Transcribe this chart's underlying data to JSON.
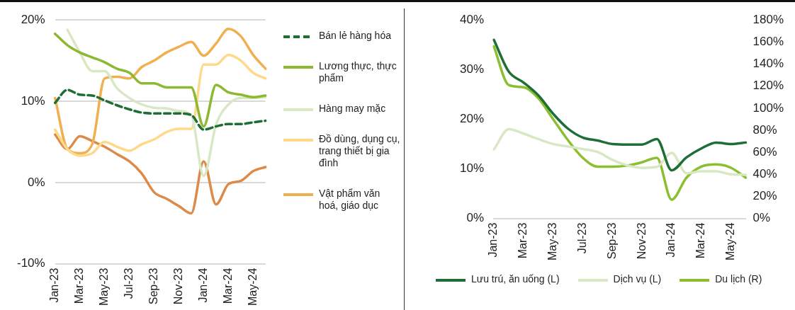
{
  "chart_data": [
    {
      "type": "line",
      "categories": [
        "Jan-23",
        null,
        "Mar-23",
        null,
        "May-23",
        null,
        "Jul-23",
        null,
        "Sep-23",
        null,
        "Nov-23",
        null,
        "Jan-24",
        null,
        "Mar-24",
        null,
        "May-24",
        null
      ],
      "series": [
        {
          "name": "Bán lẻ hàng hóa",
          "color": "#1e6e35",
          "line_style": "dashed",
          "values": [
            9.8,
            11.4,
            10.8,
            10.7,
            10.1,
            9.5,
            9.0,
            8.6,
            8.5,
            8.5,
            8.5,
            8.3,
            6.5,
            6.9,
            7.2,
            7.2,
            7.4,
            7.6
          ]
        },
        {
          "name": "Lương thực, thực phẩm",
          "color": "#8cb832",
          "values": [
            18.3,
            16.9,
            16.0,
            15.4,
            14.8,
            14.0,
            13.5,
            12.2,
            12.2,
            11.7,
            11.7,
            11.7,
            6.9,
            12.0,
            11.1,
            10.8,
            10.5,
            10.7
          ]
        },
        {
          "name": "Hàng may mặc",
          "color": "#d9e8c4",
          "values": [
            null,
            18.8,
            16.0,
            13.7,
            13.7,
            11.6,
            10.4,
            9.6,
            9.2,
            9.1,
            8.8,
            8.3,
            0.8,
            7.1,
            9.6,
            10.4,
            10.4,
            10.5
          ]
        },
        {
          "name": "Đồ dùng, dụng cụ, trang thiết bị gia đình",
          "color": "#ffd98a",
          "values": [
            6.5,
            4.1,
            3.3,
            3.6,
            5.0,
            4.4,
            3.9,
            4.7,
            5.3,
            6.2,
            6.6,
            6.6,
            14.5,
            14.5,
            15.7,
            15.0,
            13.5,
            12.8
          ]
        },
        {
          "name": "Vật phẩm văn hoá, giáo dục",
          "color": "#f0b050",
          "values": [
            10.4,
            4.1,
            3.6,
            4.7,
            12.8,
            13.0,
            12.8,
            14.2,
            15.0,
            16.0,
            16.7,
            17.3,
            15.6,
            17.1,
            18.9,
            18.0,
            15.7,
            14.0
          ]
        },
        {
          "color": "#dd8a48",
          "values": [
            5.9,
            4.1,
            5.7,
            5.1,
            4.4,
            3.5,
            2.6,
            1.1,
            -1.2,
            -2.0,
            -2.9,
            -3.8,
            2.6,
            -2.7,
            -0.2,
            0.2,
            1.4,
            1.9
          ]
        }
      ],
      "ylim": [
        -10,
        20
      ],
      "yticks": [
        {
          "value": -10,
          "label": "-10%"
        },
        {
          "value": 0,
          "label": "0%"
        },
        {
          "value": 10,
          "label": "10%"
        },
        {
          "value": 20,
          "label": "20%"
        }
      ],
      "grid": "y",
      "legend": "right"
    },
    {
      "type": "line",
      "categories": [
        "Jan-23",
        null,
        "Mar-23",
        null,
        "May-23",
        null,
        "Jul-23",
        null,
        "Sep-23",
        null,
        "Nov-23",
        null,
        "Jan-24",
        null,
        "Mar-24",
        null,
        "May-24",
        null
      ],
      "series": [
        {
          "name": "Lưu trú, ăn uống (L)",
          "color": "#1e6e35",
          "values": [
            36.0,
            29.6,
            27.4,
            24.8,
            21.1,
            18.1,
            16.3,
            15.7,
            15.0,
            14.9,
            14.9,
            16.0,
            9.7,
            12.3,
            14.1,
            15.3,
            15.0,
            15.3
          ]
        },
        {
          "name": "Dịch vụ (L)",
          "color": "#d9e8c4",
          "values": [
            13.9,
            18.0,
            17.1,
            16.0,
            15.0,
            14.5,
            14.0,
            13.4,
            11.8,
            10.7,
            10.2,
            10.4,
            13.2,
            9.1,
            9.5,
            9.5,
            8.9,
            8.8
          ]
        },
        {
          "name": "Du lịch (R)",
          "color": "#8cbf30",
          "axis": "y2",
          "values": [
            156,
            121,
            119,
            109,
            90,
            71,
            55,
            47,
            47,
            48,
            51,
            55,
            17,
            37,
            47,
            49,
            46,
            37
          ]
        }
      ],
      "ylim": [
        0,
        40
      ],
      "yticks": [
        {
          "value": 0,
          "label": "0%"
        },
        {
          "value": 10,
          "label": "10%"
        },
        {
          "value": 20,
          "label": "20%"
        },
        {
          "value": 30,
          "label": "30%"
        },
        {
          "value": 40,
          "label": "40%"
        }
      ],
      "y2lim": [
        0,
        180
      ],
      "y2ticks": [
        {
          "value": 0,
          "label": "0%"
        },
        {
          "value": 20,
          "label": "20%"
        },
        {
          "value": 40,
          "label": "40%"
        },
        {
          "value": 60,
          "label": "60%"
        },
        {
          "value": 80,
          "label": "80%"
        },
        {
          "value": 100,
          "label": "100%"
        },
        {
          "value": 120,
          "label": "120%"
        },
        {
          "value": 140,
          "label": "140%"
        },
        {
          "value": 160,
          "label": "160%"
        },
        {
          "value": 180,
          "label": "180%"
        }
      ],
      "grid": false,
      "legend": "bottom"
    }
  ]
}
